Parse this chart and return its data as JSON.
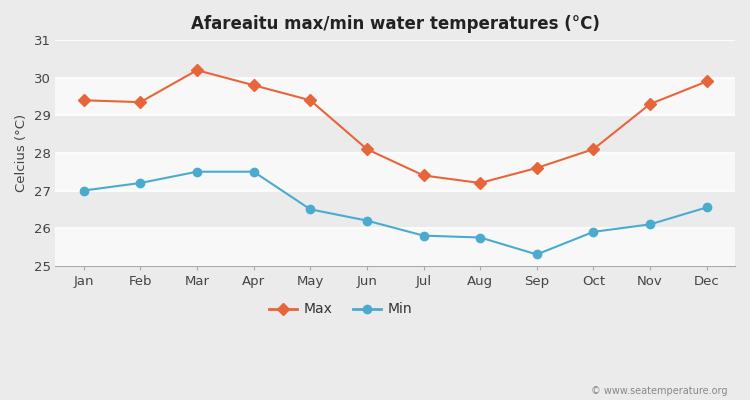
{
  "title": "Afareaitu max/min water temperatures (°C)",
  "ylabel": "Celcius (°C)",
  "months": [
    "Jan",
    "Feb",
    "Mar",
    "Apr",
    "May",
    "Jun",
    "Jul",
    "Aug",
    "Sep",
    "Oct",
    "Nov",
    "Dec"
  ],
  "max_temps": [
    29.4,
    29.35,
    30.2,
    29.8,
    29.4,
    28.1,
    27.4,
    27.2,
    27.6,
    28.1,
    29.3,
    29.9
  ],
  "min_temps": [
    27.0,
    27.2,
    27.5,
    27.5,
    26.5,
    26.2,
    25.8,
    25.75,
    25.3,
    25.9,
    26.1,
    26.55
  ],
  "max_color": "#e8653a",
  "min_color": "#4aabcf",
  "bg_color": "#ebebeb",
  "plot_bg_color": "#ebebeb",
  "ylim": [
    25,
    31
  ],
  "yticks": [
    25,
    26,
    27,
    28,
    29,
    30,
    31
  ],
  "grid_color": "#ffffff",
  "watermark": "© www.seatemperature.org",
  "legend_max": "Max",
  "legend_min": "Min"
}
